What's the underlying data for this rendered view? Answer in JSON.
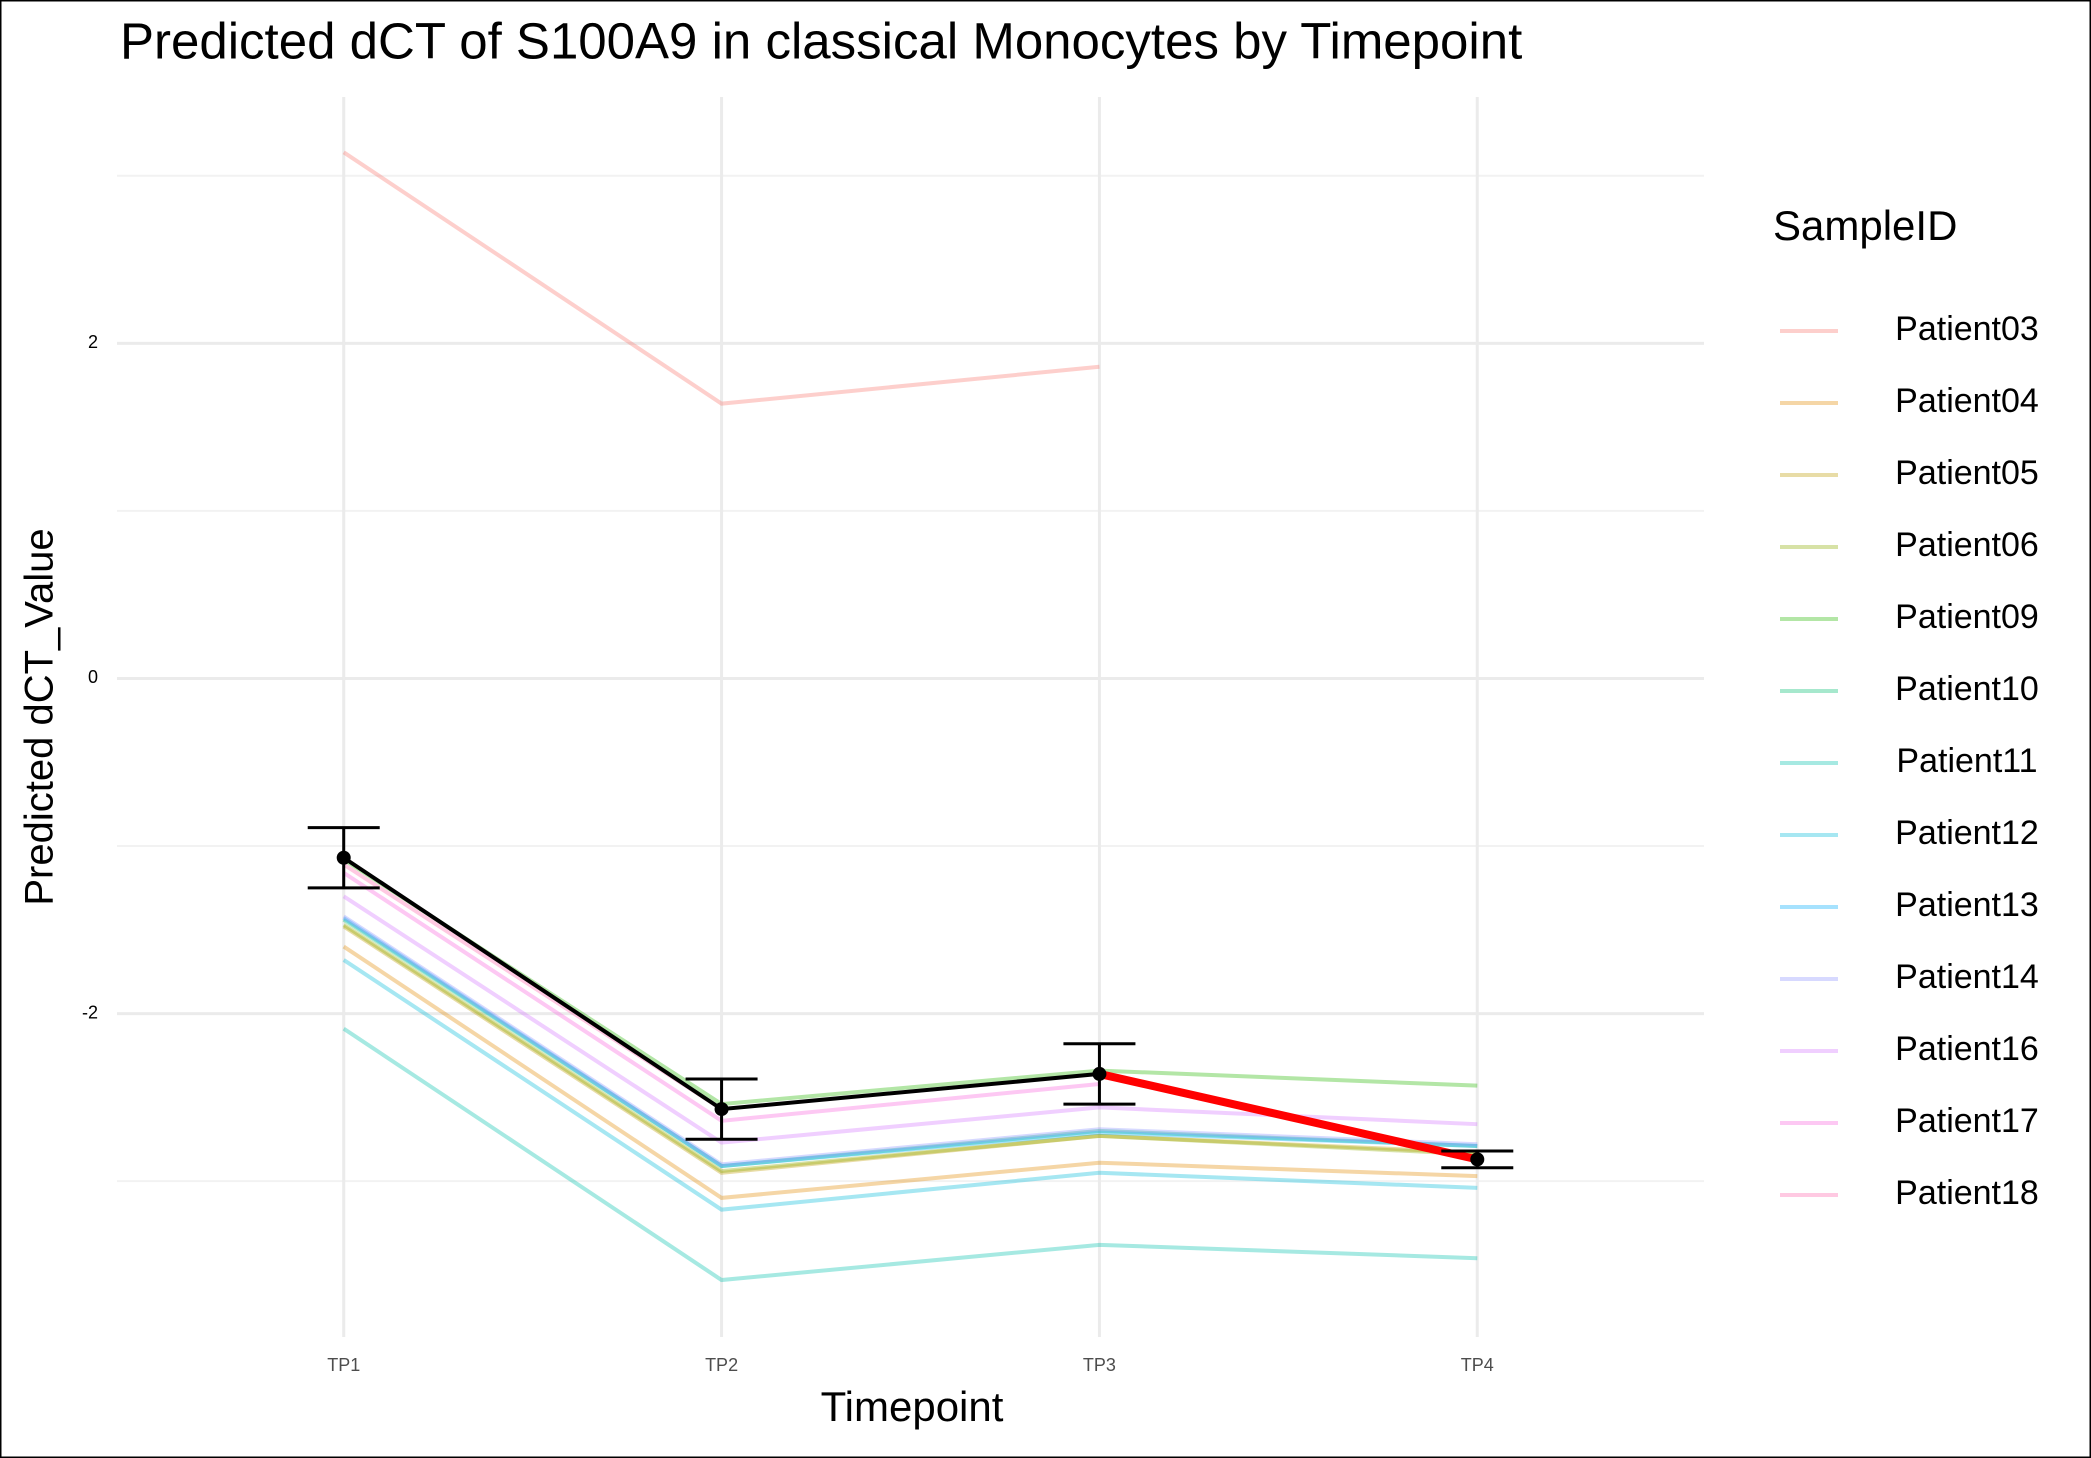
{
  "chart_data": {
    "type": "line",
    "title": "Predicted dCT of  S100A9 in  classical  Monocytes by Timepoint",
    "x_label": "Timepoint",
    "y_label": "Predicted dCT_Value",
    "legend_title": "SampleID",
    "categories": [
      "TP1",
      "TP2",
      "TP3",
      "TP4"
    ],
    "ylim": [
      -3.93,
      3.47
    ],
    "yticks": [
      -2,
      0,
      2
    ],
    "minor_yticks": [
      -3,
      -1,
      1,
      3
    ],
    "grid": true,
    "series": [
      {
        "name": "Patient03",
        "color": "#F8766D",
        "values": [
          3.14,
          1.64,
          1.86,
          null
        ]
      },
      {
        "name": "Patient04",
        "color": "#E18A00",
        "values": [
          -1.6,
          -3.1,
          -2.89,
          -2.97
        ]
      },
      {
        "name": "Patient05",
        "color": "#BE9C00",
        "values": [
          -1.48,
          -2.95,
          -2.73,
          -2.83
        ]
      },
      {
        "name": "Patient06",
        "color": "#8CAB00",
        "values": [
          -1.47,
          -2.94,
          -2.73,
          -2.84
        ]
      },
      {
        "name": "Patient09",
        "color": "#24B700",
        "values": [
          -1.08,
          -2.54,
          -2.34,
          -2.43
        ]
      },
      {
        "name": "Patient10",
        "color": "#00BE70",
        "values": [
          -1.44,
          -2.91,
          -2.7,
          -2.79
        ]
      },
      {
        "name": "Patient11",
        "color": "#00C1AB",
        "values": [
          -2.09,
          -3.59,
          -3.38,
          -3.46
        ]
      },
      {
        "name": "Patient12",
        "color": "#00BBDA",
        "values": [
          -1.68,
          -3.17,
          -2.95,
          -3.04
        ]
      },
      {
        "name": "Patient13",
        "color": "#00ACFC",
        "values": [
          -1.43,
          -2.91,
          -2.71,
          -2.79
        ]
      },
      {
        "name": "Patient14",
        "color": "#8B93FF",
        "values": [
          -1.42,
          -2.9,
          -2.69,
          -2.78
        ]
      },
      {
        "name": "Patient16",
        "color": "#D575FE",
        "values": [
          -1.3,
          -2.77,
          -2.56,
          -2.66
        ]
      },
      {
        "name": "Patient17",
        "color": "#F962DD",
        "values": [
          -1.16,
          -2.64,
          -2.42,
          null
        ]
      },
      {
        "name": "Patient18",
        "color": "#FF65AC",
        "values": [
          -1.11,
          -2.57,
          null,
          null
        ]
      }
    ],
    "series_opacity": 0.35,
    "mean": {
      "values": [
        -1.07,
        -2.57,
        -2.36,
        -2.87
      ],
      "errors": [
        0.18,
        0.18,
        0.18,
        0.05
      ],
      "color": "#000000",
      "highlight_color": "#FF0000",
      "highlight_from_index": 2
    }
  }
}
